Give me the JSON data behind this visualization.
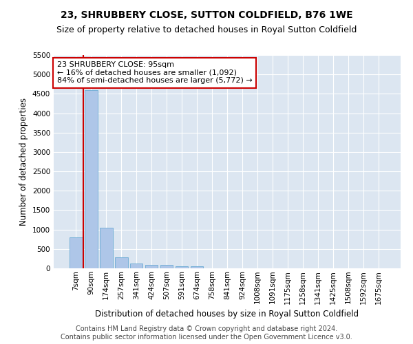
{
  "title_line1": "23, SHRUBBERY CLOSE, SUTTON COLDFIELD, B76 1WE",
  "title_line2": "Size of property relative to detached houses in Royal Sutton Coldfield",
  "xlabel": "Distribution of detached houses by size in Royal Sutton Coldfield",
  "ylabel": "Number of detached properties",
  "footer_line1": "Contains HM Land Registry data © Crown copyright and database right 2024.",
  "footer_line2": "Contains public sector information licensed under the Open Government Licence v3.0.",
  "annotation_line1": "23 SHRUBBERY CLOSE: 95sqm",
  "annotation_line2": "← 16% of detached houses are smaller (1,092)",
  "annotation_line3": "84% of semi-detached houses are larger (5,772) →",
  "categories": [
    "7sqm",
    "90sqm",
    "174sqm",
    "257sqm",
    "341sqm",
    "424sqm",
    "507sqm",
    "591sqm",
    "674sqm",
    "758sqm",
    "841sqm",
    "924sqm",
    "1008sqm",
    "1091sqm",
    "1175sqm",
    "1258sqm",
    "1341sqm",
    "1425sqm",
    "1508sqm",
    "1592sqm",
    "1675sqm"
  ],
  "values": [
    800,
    4600,
    1050,
    280,
    130,
    80,
    80,
    50,
    50,
    0,
    0,
    0,
    0,
    0,
    0,
    0,
    0,
    0,
    0,
    0,
    0
  ],
  "bar_color": "#aec6e8",
  "bar_edge_color": "#6aaad4",
  "marker_line_index": 1,
  "ylim": [
    0,
    5500
  ],
  "yticks": [
    0,
    500,
    1000,
    1500,
    2000,
    2500,
    3000,
    3500,
    4000,
    4500,
    5000,
    5500
  ],
  "background_color": "#dce6f1",
  "grid_color": "#ffffff",
  "annotation_box_facecolor": "#ffffff",
  "annotation_box_edgecolor": "#cc0000",
  "red_line_color": "#cc0000",
  "title_fontsize": 10,
  "subtitle_fontsize": 9,
  "axis_label_fontsize": 8.5,
  "tick_fontsize": 7.5,
  "annotation_fontsize": 8,
  "footer_fontsize": 7
}
